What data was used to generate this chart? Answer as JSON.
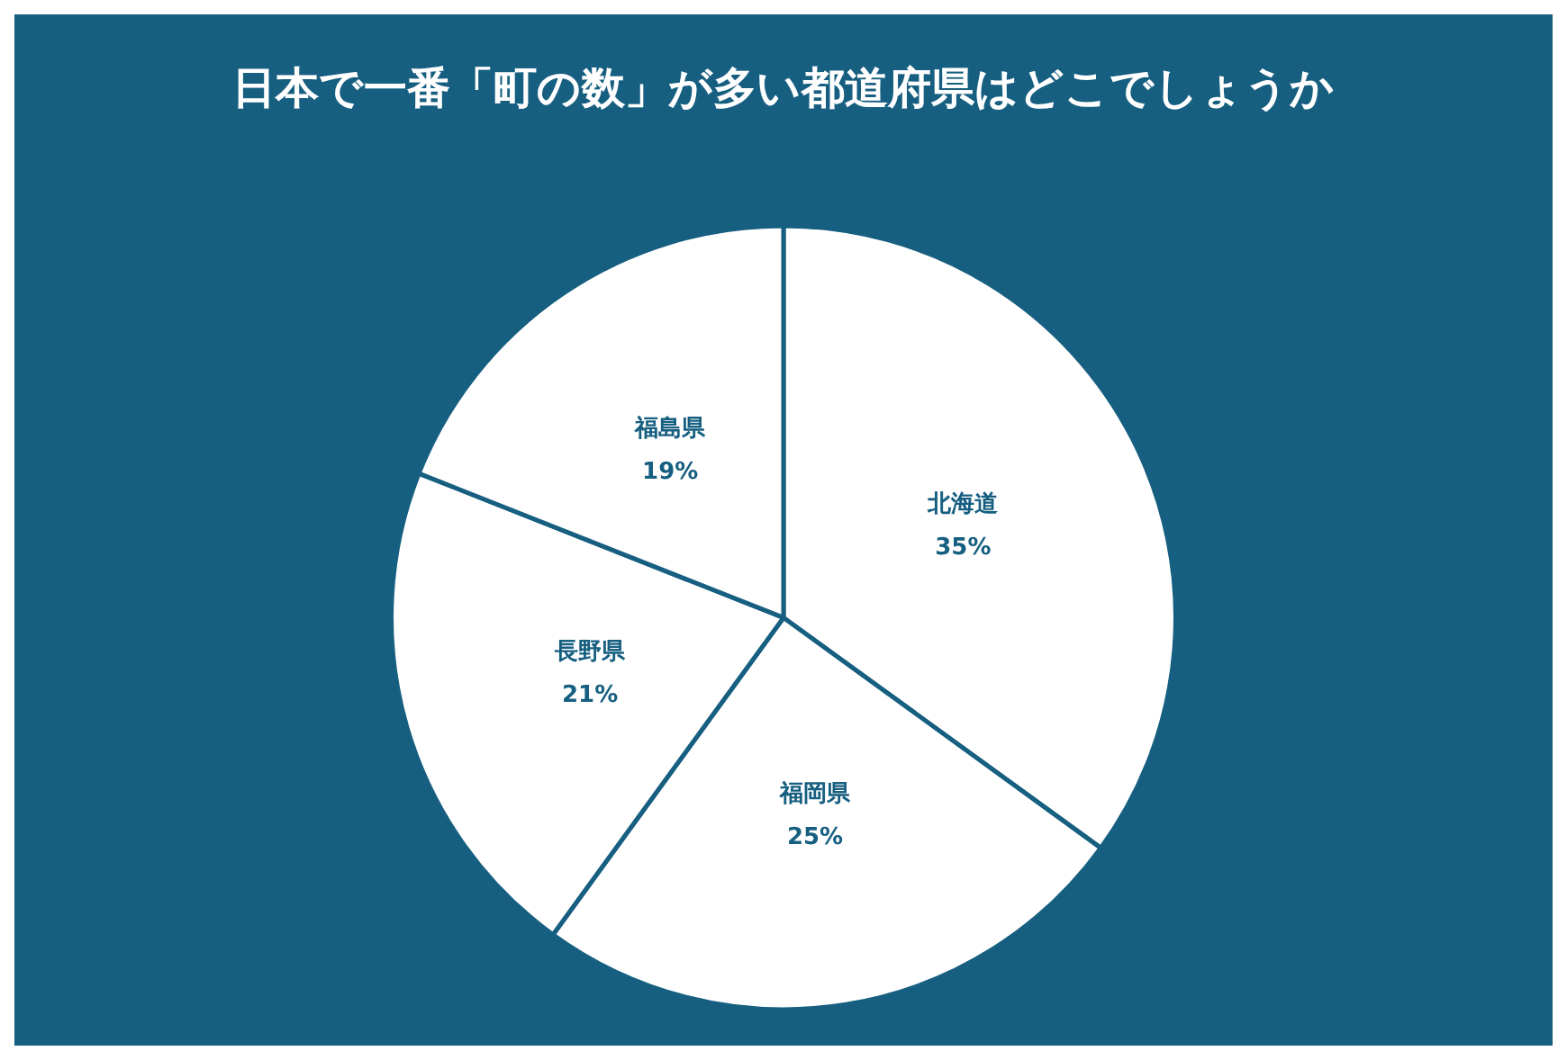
{
  "chart_data": {
    "type": "pie",
    "title": "日本で一番「町の数」が多い都道府県はどこでしょうか",
    "categories": [
      "北海道",
      "福岡県",
      "長野県",
      "福島県"
    ],
    "values": [
      35,
      25,
      21,
      19
    ],
    "colors": [
      "#ffffff",
      "#ffffff",
      "#ffffff",
      "#ffffff"
    ],
    "value_labels": [
      "35%",
      "25%",
      "21%",
      "19%"
    ],
    "legend": false
  }
}
